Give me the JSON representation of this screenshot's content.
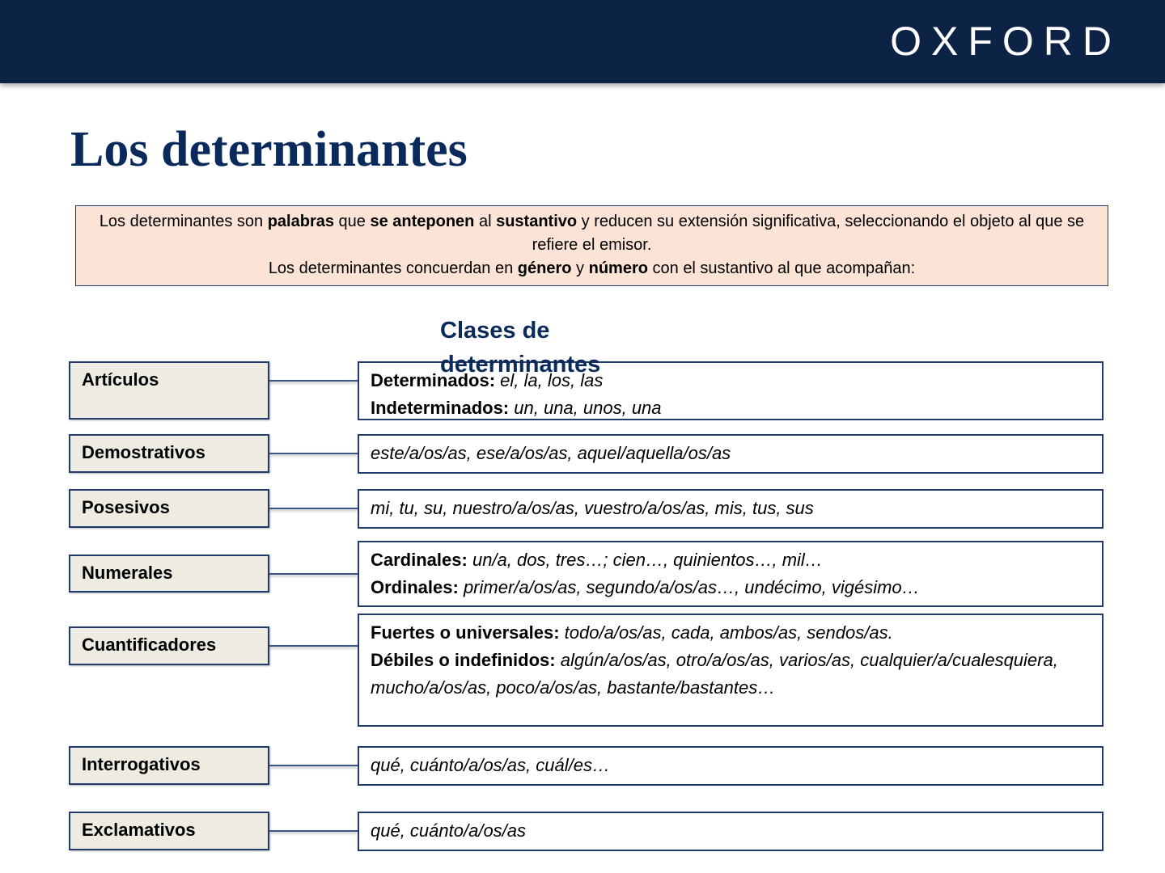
{
  "header": {
    "logo": "OXFORD"
  },
  "title": "Los determinantes",
  "intro": {
    "paragraph1": [
      "Los determinantes son ",
      "palabras",
      " que ",
      "se anteponen",
      " al ",
      "sustantivo",
      " y reducen su extensión significativa, seleccionando el objeto al que se refiere el emisor."
    ],
    "paragraph2": [
      "Los determinantes concuerdan en ",
      "género",
      " y ",
      "número",
      " con el sustantivo al que acompañan:"
    ]
  },
  "section_title": "Clases de determinantes",
  "rows": [
    {
      "label": "Artículos",
      "lines": [
        {
          "term": "Determinados:",
          "text": "el, la, los, las"
        },
        {
          "term": "Indeterminados:",
          "text": "un, una, unos, una"
        }
      ]
    },
    {
      "label": "Demostrativos",
      "lines": [
        {
          "text": "este/a/os/as, ese/a/os/as, aquel/aquella/os/as"
        }
      ]
    },
    {
      "label": "Posesivos",
      "lines": [
        {
          "text": "mi, tu, su, nuestro/a/os/as, vuestro/a/os/as, mis, tus, sus"
        }
      ]
    },
    {
      "label": "Numerales",
      "lines": [
        {
          "term": "Cardinales:",
          "text": "un/a, dos, tres…; cien…, quinientos…, mil…"
        },
        {
          "term": "Ordinales:",
          "text": "primer/a/os/as, segundo/a/os/as…, undécimo, vigésimo…"
        }
      ]
    },
    {
      "label": "Cuantificadores",
      "lines": [
        {
          "term": "Fuertes o universales:",
          "text": "todo/a/os/as, cada, ambos/as, sendos/as."
        },
        {
          "term": "Débiles o indefinidos:",
          "text": "algún/a/os/as, otro/a/os/as, varios/as, cualquier/a/cualesquiera, mucho/a/os/as, poco/a/os/as, bastante/bastantes…"
        }
      ]
    },
    {
      "label": "Interrogativos",
      "lines": [
        {
          "text": "qué, cuánto/a/os/as, cuál/es…"
        }
      ]
    },
    {
      "label": "Exclamativos",
      "lines": [
        {
          "text": "qué, cuánto/a/os/as"
        }
      ]
    }
  ]
}
